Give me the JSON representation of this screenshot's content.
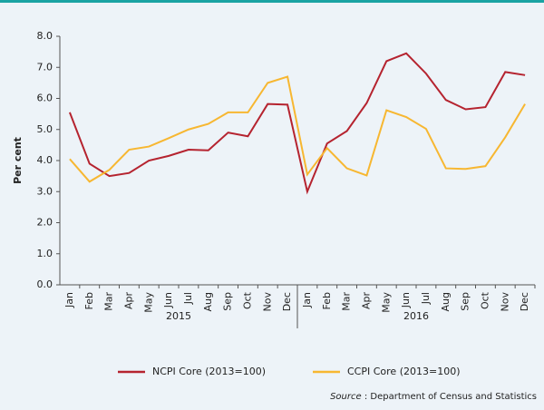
{
  "chart_data": {
    "type": "line",
    "y_label": "Per cent",
    "categories": [
      "Jan",
      "Feb",
      "Mar",
      "Apr",
      "May",
      "Jun",
      "Jul",
      "Aug",
      "Sep",
      "Oct",
      "Nov",
      "Dec",
      "Jan",
      "Feb",
      "Mar",
      "Apr",
      "May",
      "Jun",
      "Jul",
      "Aug",
      "Sep",
      "Oct",
      "Nov",
      "Dec"
    ],
    "groups": [
      "2015",
      "2016"
    ],
    "series": [
      {
        "name": "NCPI Core (2013=100)",
        "color": "#b5232f",
        "values": [
          5.55,
          3.9,
          3.5,
          3.6,
          4.0,
          4.15,
          4.35,
          4.33,
          4.9,
          4.78,
          5.82,
          5.8,
          3.0,
          4.55,
          4.95,
          5.85,
          7.2,
          7.45,
          6.8,
          5.95,
          5.65,
          5.72,
          6.85,
          6.75
        ]
      },
      {
        "name": "CCPI Core (2013=100)",
        "color": "#f7b731",
        "values": [
          4.05,
          3.32,
          3.7,
          4.35,
          4.45,
          4.72,
          5.0,
          5.18,
          5.55,
          5.55,
          6.5,
          6.7,
          3.55,
          4.4,
          3.75,
          3.52,
          5.62,
          5.4,
          5.02,
          3.75,
          3.73,
          3.82,
          4.75,
          5.82
        ]
      }
    ],
    "ylim": [
      0,
      8
    ],
    "yticks": [
      {
        "value": 0,
        "label": "0.0"
      },
      {
        "value": 1,
        "label": "1.0"
      },
      {
        "value": 2,
        "label": "2.0"
      },
      {
        "value": 3,
        "label": "3.0"
      },
      {
        "value": 4,
        "label": "4.0"
      },
      {
        "value": 5,
        "label": "5.0"
      },
      {
        "value": 6,
        "label": "6.0"
      },
      {
        "value": 7,
        "label": "7.0"
      },
      {
        "value": 8,
        "label": "8.0"
      }
    ],
    "source_label": "Source",
    "source_text": ": Department of Census and Statistics"
  }
}
